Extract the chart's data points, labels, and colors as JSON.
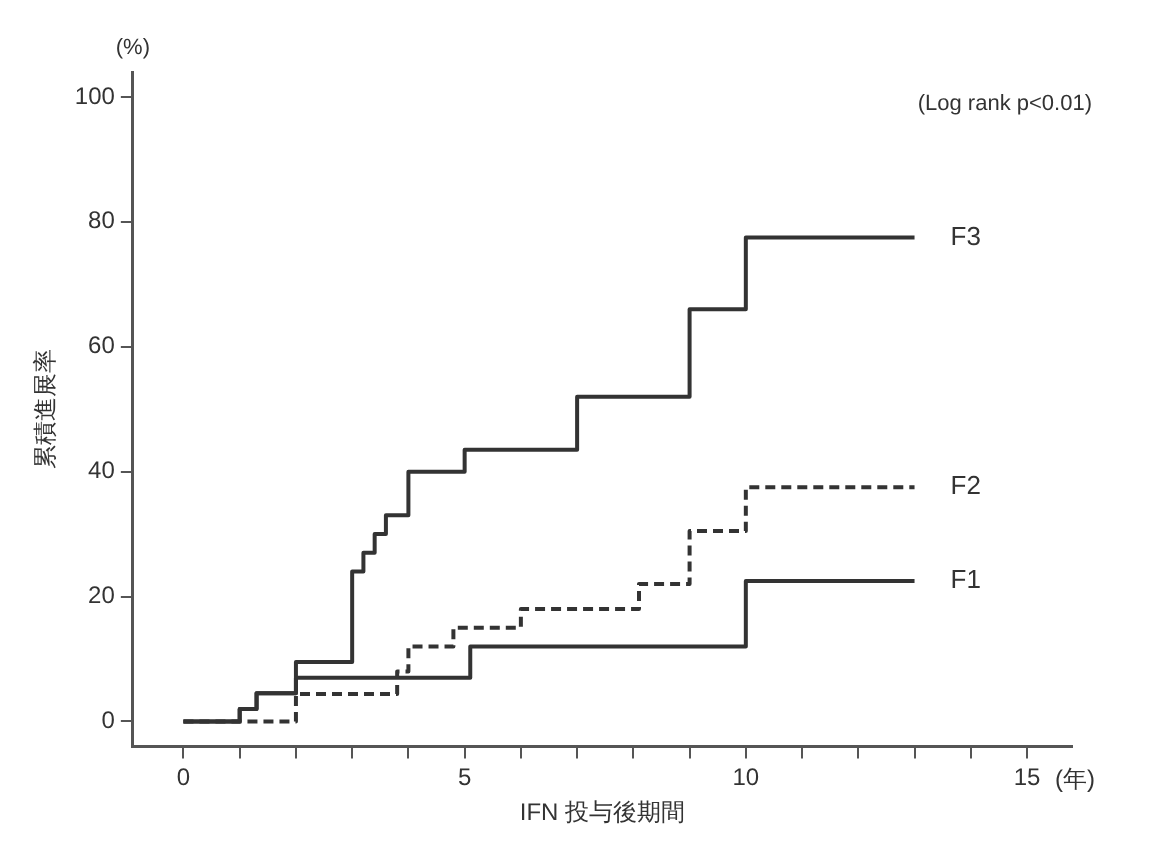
{
  "chart_data": {
    "type": "step",
    "xlabel": "IFN 投与後期間",
    "ylabel": "累積進展率",
    "annotations": [
      "(Log rank p<0.01)",
      "(%)",
      "(年)"
    ],
    "series": [
      {
        "name": "F3",
        "color": "#333333",
        "line_style": "solid",
        "x": [
          0,
          1,
          1.3,
          2,
          3,
          3.2,
          3.4,
          3.6,
          4,
          5,
          7,
          9,
          10,
          13
        ],
        "values": [
          0,
          2,
          4.5,
          9.5,
          24,
          27,
          30,
          33,
          40,
          43.5,
          52,
          66,
          77.5,
          77.5
        ]
      },
      {
        "name": "F2",
        "color": "#333333",
        "line_style": "dashed",
        "x": [
          0,
          2,
          3.8,
          4,
          4.8,
          6,
          8.1,
          9,
          10,
          13
        ],
        "values": [
          0,
          4.4,
          8,
          12,
          15,
          18,
          22,
          30.5,
          37.5,
          37.5
        ]
      },
      {
        "name": "F1",
        "color": "#333333",
        "line_style": "solid",
        "x": [
          0,
          1,
          1.3,
          2,
          5.1,
          10,
          13
        ],
        "values": [
          0,
          2,
          4.5,
          7,
          12,
          22.5,
          22.5
        ]
      }
    ],
    "xlim": [
      -0.9,
      15.8
    ],
    "xticks": [
      0,
      {
        "value": 1,
        "label": null
      },
      {
        "value": 2,
        "label": null
      },
      {
        "value": 3,
        "label": null
      },
      {
        "value": 4,
        "label": null
      },
      5,
      {
        "value": 6,
        "label": null
      },
      {
        "value": 7,
        "label": null
      },
      {
        "value": 8,
        "label": null
      },
      {
        "value": 9,
        "label": null
      },
      10,
      {
        "value": 11,
        "label": null
      },
      {
        "value": 12,
        "label": null
      },
      {
        "value": 13,
        "label": null
      },
      {
        "value": 14,
        "label": null
      },
      15
    ],
    "ylim": [
      -4,
      104
    ],
    "yticks": [
      0,
      20,
      40,
      60,
      80,
      100
    ],
    "grid": false,
    "legend": false
  }
}
